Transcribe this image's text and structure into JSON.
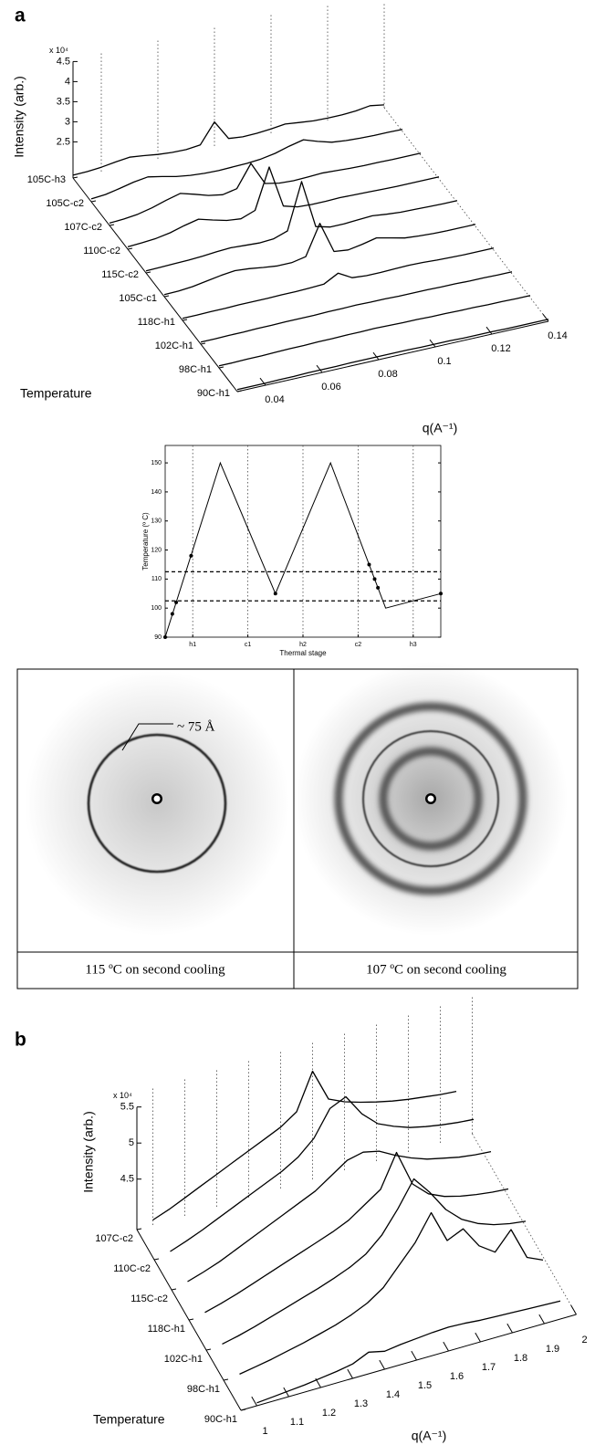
{
  "figure": {
    "panel_labels": [
      "a",
      "b"
    ]
  },
  "diffraction": {
    "annotation": "~ 75 Å",
    "captions": [
      "115 ºC on second cooling",
      "107 ºC on second cooling"
    ]
  },
  "chart_data": [
    {
      "type": "waterfall",
      "xlabel": "q(A⁻¹)",
      "zlabel": "Intensity (arb.)",
      "zmultiplier": "x 10⁴",
      "ylabel": "Temperature",
      "x": [
        0.03,
        0.035,
        0.04,
        0.045,
        0.05,
        0.055,
        0.06,
        0.065,
        0.07,
        0.075,
        0.08,
        0.085,
        0.09,
        0.095,
        0.1,
        0.105,
        0.11,
        0.115,
        0.12,
        0.125,
        0.13,
        0.135,
        0.14
      ],
      "xlim": [
        0.03,
        0.14
      ],
      "xticks": [
        0.04,
        0.06,
        0.08,
        0.1,
        0.12,
        0.14
      ],
      "zlim": [
        1.6,
        4.5
      ],
      "zticks": [
        2.5,
        3,
        3.5,
        4,
        4.5
      ],
      "grid": true,
      "series": [
        {
          "name": "105C-h3",
          "color": "#000000",
          "values": [
            1.67,
            1.68,
            1.71,
            1.76,
            1.8,
            1.76,
            1.71,
            1.68,
            1.67,
            1.71,
            2.2,
            1.71,
            1.67,
            1.68,
            1.71,
            1.75,
            1.71,
            1.67,
            1.66,
            1.66,
            1.68,
            1.73,
            1.67
          ]
        },
        {
          "name": "105C-c2",
          "color": "#000000",
          "values": [
            1.67,
            1.7,
            1.77,
            1.85,
            1.9,
            1.83,
            1.75,
            1.7,
            1.67,
            1.66,
            1.67,
            1.68,
            1.71,
            1.77,
            1.87,
            1.95,
            1.83,
            1.73,
            1.69,
            1.67,
            1.66,
            1.66,
            1.65
          ]
        },
        {
          "name": "107C-c2",
          "color": "#000000",
          "values": [
            1.66,
            1.68,
            1.72,
            1.8,
            1.91,
            2.0,
            1.9,
            1.79,
            1.73,
            1.8,
            2.35,
            1.77,
            1.7,
            1.68,
            1.69,
            1.71,
            1.69,
            1.67,
            1.66,
            1.66,
            1.65,
            1.65,
            1.65
          ]
        },
        {
          "name": "110C-c2",
          "color": "#000000",
          "values": [
            1.66,
            1.68,
            1.71,
            1.77,
            1.87,
            1.95,
            1.85,
            1.76,
            1.72,
            1.85,
            2.85,
            1.8,
            1.7,
            1.68,
            1.68,
            1.69,
            1.68,
            1.67,
            1.66,
            1.65,
            1.65,
            1.65,
            1.65
          ]
        },
        {
          "name": "115C-c2",
          "color": "#000000",
          "values": [
            1.65,
            1.66,
            1.67,
            1.68,
            1.7,
            1.73,
            1.75,
            1.73,
            1.71,
            1.73,
            1.85,
            3.0,
            1.8,
            1.71,
            1.71,
            1.73,
            1.75,
            1.71,
            1.68,
            1.67,
            1.66,
            1.65,
            1.65
          ]
        },
        {
          "name": "105C-c1",
          "color": "#000000",
          "values": [
            1.65,
            1.66,
            1.69,
            1.75,
            1.81,
            1.85,
            1.82,
            1.77,
            1.73,
            1.73,
            1.8,
            2.55,
            1.77,
            1.73,
            1.79,
            1.87,
            1.79,
            1.71,
            1.68,
            1.66,
            1.65,
            1.65,
            1.65
          ]
        },
        {
          "name": "118C-h1",
          "color": "#000000",
          "values": [
            1.65,
            1.65,
            1.66,
            1.66,
            1.67,
            1.67,
            1.67,
            1.68,
            1.68,
            1.69,
            1.71,
            1.9,
            1.71,
            1.68,
            1.68,
            1.69,
            1.7,
            1.69,
            1.67,
            1.66,
            1.65,
            1.65,
            1.65
          ]
        },
        {
          "name": "102C-h1",
          "color": "#000000",
          "values": [
            1.65,
            1.65,
            1.66,
            1.66,
            1.67,
            1.67,
            1.68,
            1.68,
            1.68,
            1.69,
            1.69,
            1.7,
            1.69,
            1.69,
            1.68,
            1.68,
            1.68,
            1.67,
            1.67,
            1.66,
            1.66,
            1.65,
            1.65
          ]
        },
        {
          "name": "98C-h1",
          "color": "#000000",
          "values": [
            1.65,
            1.65,
            1.66,
            1.66,
            1.67,
            1.68,
            1.68,
            1.69,
            1.69,
            1.7,
            1.7,
            1.71,
            1.7,
            1.69,
            1.69,
            1.68,
            1.68,
            1.67,
            1.67,
            1.66,
            1.66,
            1.65,
            1.65
          ]
        },
        {
          "name": "90C-h1",
          "color": "#000000",
          "values": [
            1.65,
            1.65,
            1.65,
            1.66,
            1.66,
            1.67,
            1.67,
            1.67,
            1.68,
            1.68,
            1.68,
            1.68,
            1.68,
            1.67,
            1.67,
            1.67,
            1.66,
            1.66,
            1.66,
            1.65,
            1.65,
            1.65,
            1.65
          ]
        }
      ]
    },
    {
      "type": "line",
      "xlabel": "Thermal stage",
      "ylabel": "Temperature (º C)",
      "xlim": [
        0,
        5
      ],
      "xticks": [
        {
          "value": 0.5,
          "label": "h1"
        },
        {
          "value": 1.5,
          "label": "c1"
        },
        {
          "value": 2.5,
          "label": "h2"
        },
        {
          "value": 3.5,
          "label": "c2"
        },
        {
          "value": 4.5,
          "label": "h3"
        }
      ],
      "ylim": [
        90,
        156
      ],
      "yticks": [
        90,
        100,
        110,
        120,
        130,
        140,
        150
      ],
      "grid": true,
      "hlines": [
        102.5,
        112.5
      ],
      "series": [
        {
          "color": "#000000",
          "marker": false,
          "x": [
            0,
            1,
            2,
            3,
            4,
            5
          ],
          "values": [
            90,
            150,
            105,
            150,
            100,
            105
          ]
        },
        {
          "color": "#000000",
          "marker": true,
          "x": [
            0,
            0.13,
            0.2,
            0.47,
            2,
            3.7,
            3.8,
            3.86,
            5
          ],
          "values": [
            90,
            98,
            102,
            118,
            105,
            115,
            110,
            107,
            105
          ]
        }
      ]
    },
    {
      "type": "waterfall",
      "xlabel": "q(A⁻¹)",
      "zlabel": "Intensity (arb.)",
      "zmultiplier": "x 10⁴",
      "ylabel": "Temperature",
      "x": [
        1,
        1.05,
        1.1,
        1.15,
        1.2,
        1.25,
        1.3,
        1.35,
        1.4,
        1.45,
        1.5,
        1.55,
        1.6,
        1.65,
        1.7,
        1.75,
        1.8,
        1.85,
        1.9,
        1.95
      ],
      "xlim": [
        0.95,
        2
      ],
      "xticks": [
        1,
        1.1,
        1.2,
        1.3,
        1.4,
        1.5,
        1.6,
        1.7,
        1.8,
        1.9,
        2
      ],
      "zlim": [
        3.8,
        5.5
      ],
      "zticks": [
        4.5,
        5,
        5.5
      ],
      "grid": true,
      "series": [
        {
          "name": "107C-c2",
          "color": "#000000",
          "values": [
            3.87,
            3.95,
            4.05,
            4.15,
            4.25,
            4.35,
            4.45,
            4.55,
            4.65,
            4.8,
            5.3,
            4.85,
            4.75,
            4.68,
            4.62,
            4.57,
            4.53,
            4.5,
            4.47,
            4.45
          ]
        },
        {
          "name": "110C-c2",
          "color": "#000000",
          "values": [
            3.85,
            3.93,
            4.02,
            4.12,
            4.22,
            4.32,
            4.42,
            4.52,
            4.65,
            4.85,
            5.2,
            5.3,
            5.0,
            4.8,
            4.7,
            4.62,
            4.57,
            4.53,
            4.5,
            4.48
          ]
        },
        {
          "name": "115C-c2",
          "color": "#000000",
          "values": [
            3.85,
            3.92,
            4.0,
            4.1,
            4.2,
            4.3,
            4.4,
            4.5,
            4.6,
            4.75,
            4.9,
            4.95,
            4.9,
            4.78,
            4.68,
            4.6,
            4.55,
            4.5,
            4.47,
            4.45
          ]
        },
        {
          "name": "118C-h1",
          "color": "#000000",
          "values": [
            3.84,
            3.9,
            3.97,
            4.05,
            4.13,
            4.21,
            4.29,
            4.37,
            4.45,
            4.55,
            4.7,
            4.85,
            5.3,
            4.8,
            4.6,
            4.5,
            4.44,
            4.4,
            4.37,
            4.35
          ]
        },
        {
          "name": "102C-h1",
          "color": "#000000",
          "values": [
            3.82,
            3.87,
            3.93,
            4.0,
            4.07,
            4.14,
            4.21,
            4.29,
            4.38,
            4.5,
            4.7,
            5.0,
            5.35,
            5.1,
            4.8,
            4.6,
            4.48,
            4.4,
            4.35,
            4.32
          ]
        },
        {
          "name": "98C-h1",
          "color": "#000000",
          "values": [
            3.82,
            3.86,
            3.9,
            3.95,
            4.0,
            4.06,
            4.12,
            4.2,
            4.3,
            4.45,
            4.7,
            4.95,
            5.3,
            4.85,
            4.95,
            4.65,
            4.5,
            4.75,
            4.3,
            4.2
          ]
        },
        {
          "name": "90C-h1",
          "color": "#000000",
          "values": [
            3.84,
            3.86,
            3.88,
            3.9,
            3.93,
            3.96,
            4.0,
            4.1,
            4.05,
            4.08,
            4.1,
            4.12,
            4.13,
            4.12,
            4.1,
            4.09,
            4.08,
            4.07,
            4.06,
            4.05
          ]
        }
      ]
    }
  ]
}
